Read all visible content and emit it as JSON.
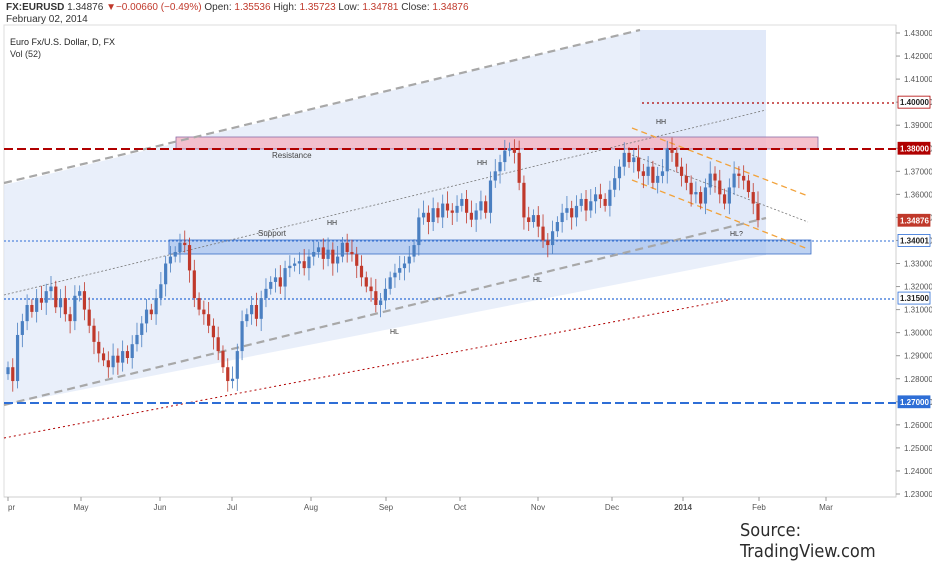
{
  "header": {
    "symbol": "FX:EURUSD",
    "last": "1.34876",
    "change": "▼−0.00660 (−0.49%)",
    "open_label": "Open:",
    "open": "1.35536",
    "high_label": "High:",
    "high": "1.35723",
    "low_label": "Low:",
    "low": "1.34781",
    "close_label": "Close:",
    "close": "1.34876",
    "date": "February 02, 2014"
  },
  "legend": {
    "title": "Euro Fx/U.S. Dollar, D, FX",
    "volume": "Vol (52)"
  },
  "source": "Source: TradingView.com",
  "colors": {
    "up": "#4a7fc1",
    "down": "#c0392b",
    "resistance": "#b00000",
    "support_band": "#a9c4ee",
    "resistance_band": "#f3b6c4",
    "channel": "#a8a8a8",
    "orange": "#f2a23a",
    "blue_level": "#2e6ed6"
  },
  "chart_data": {
    "type": "candlestick",
    "title": "Euro Fx/U.S. Dollar, D, FX",
    "x_tick_labels": [
      "pr",
      "May",
      "Jun",
      "Jul",
      "Aug",
      "Sep",
      "Oct",
      "Nov",
      "Dec",
      "2014",
      "Feb",
      "Mar"
    ],
    "y_ticks": [
      "1.43000",
      "1.42000",
      "1.41000",
      "1.40000",
      "1.39000",
      "1.38000",
      "1.37000",
      "1.36000",
      "1.35000",
      "1.34000",
      "1.33000",
      "1.32000",
      "1.31000",
      "1.30000",
      "1.29000",
      "1.28000",
      "1.27000",
      "1.26000",
      "1.25000",
      "1.24000",
      "1.23000"
    ],
    "ylim": [
      1.23,
      1.43
    ],
    "horizontal_levels": [
      {
        "value": 1.4,
        "label": "1.40000",
        "style": "dotted",
        "color": "#b00000"
      },
      {
        "value": 1.38,
        "label": "1.38000",
        "style": "dashed",
        "color": "#b00000"
      },
      {
        "value": 1.34876,
        "label": "1.34876",
        "style": "price",
        "color": "#c0392b"
      },
      {
        "value": 1.34001,
        "label": "1.34001",
        "style": "dotted",
        "color": "#2e6ed6"
      },
      {
        "value": 1.315,
        "label": "1.31500",
        "style": "dotted",
        "color": "#2e6ed6"
      },
      {
        "value": 1.27,
        "label": "1.27000",
        "style": "dashed",
        "color": "#2e6ed6"
      }
    ],
    "zones": [
      {
        "label": "Resistance",
        "low": 1.379,
        "high": 1.385
      },
      {
        "label": "Support",
        "low": 1.335,
        "high": 1.341
      }
    ],
    "annotations": [
      "HH",
      "HH",
      "HH",
      "HH",
      "HL",
      "HL",
      "HL?"
    ],
    "closes": [
      1.285,
      1.279,
      1.299,
      1.305,
      1.312,
      1.309,
      1.315,
      1.313,
      1.318,
      1.32,
      1.311,
      1.315,
      1.308,
      1.305,
      1.316,
      1.318,
      1.31,
      1.303,
      1.296,
      1.291,
      1.288,
      1.285,
      1.29,
      1.287,
      1.292,
      1.289,
      1.295,
      1.299,
      1.304,
      1.31,
      1.308,
      1.315,
      1.321,
      1.33,
      1.333,
      1.335,
      1.339,
      1.338,
      1.327,
      1.315,
      1.31,
      1.308,
      1.303,
      1.298,
      1.292,
      1.285,
      1.279,
      1.28,
      1.292,
      1.305,
      1.308,
      1.312,
      1.306,
      1.315,
      1.319,
      1.322,
      1.324,
      1.32,
      1.328,
      1.329,
      1.33,
      1.331,
      1.328,
      1.333,
      1.335,
      1.337,
      1.332,
      1.336,
      1.33,
      1.333,
      1.339,
      1.335,
      1.334,
      1.329,
      1.324,
      1.32,
      1.318,
      1.312,
      1.314,
      1.319,
      1.324,
      1.326,
      1.328,
      1.33,
      1.333,
      1.338,
      1.35,
      1.352,
      1.348,
      1.354,
      1.35,
      1.356,
      1.353,
      1.352,
      1.355,
      1.358,
      1.352,
      1.349,
      1.353,
      1.357,
      1.352,
      1.366,
      1.37,
      1.374,
      1.379,
      1.38,
      1.378,
      1.365,
      1.35,
      1.348,
      1.351,
      1.346,
      1.34,
      1.338,
      1.344,
      1.348,
      1.352,
      1.354,
      1.35,
      1.355,
      1.358,
      1.353,
      1.357,
      1.36,
      1.358,
      1.355,
      1.362,
      1.367,
      1.372,
      1.378,
      1.374,
      1.376,
      1.37,
      1.368,
      1.372,
      1.365,
      1.368,
      1.37,
      1.38,
      1.378,
      1.372,
      1.368,
      1.365,
      1.36,
      1.361,
      1.356,
      1.363,
      1.369,
      1.366,
      1.36,
      1.356,
      1.363,
      1.369,
      1.368,
      1.366,
      1.361,
      1.356,
      1.3488
    ]
  }
}
